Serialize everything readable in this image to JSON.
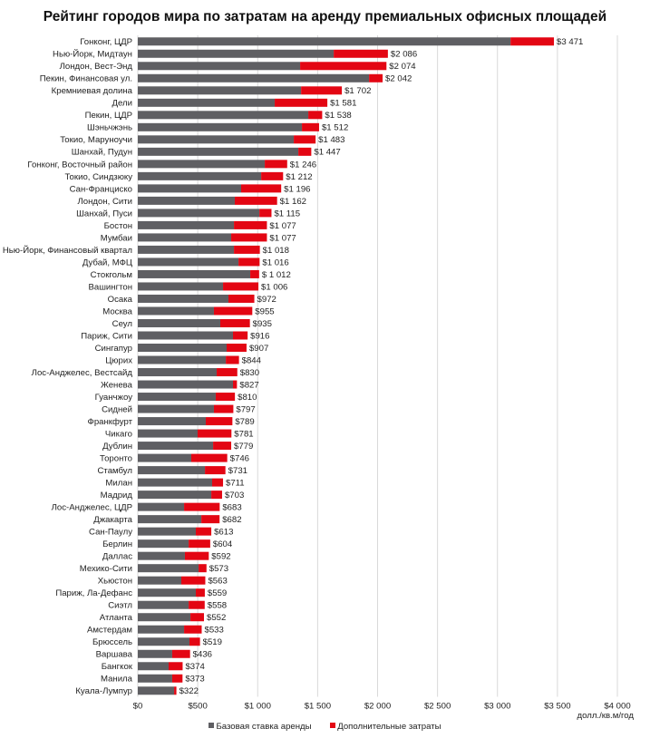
{
  "chart_data": {
    "type": "bar",
    "orientation": "horizontal",
    "stacked": true,
    "title": "Рейтинг городов мира по затратам на аренду премиальных офисных площадей",
    "xlabel": "долл./кв.м/год",
    "xlim": [
      0,
      4000
    ],
    "xticks": [
      0,
      500,
      1000,
      1500,
      2000,
      2500,
      3000,
      3500,
      4000
    ],
    "xtick_labels": [
      "$0",
      "$500",
      "$1 000",
      "$1 500",
      "$2 000",
      "$2 500",
      "$3 000",
      "$3 500",
      "$4 000"
    ],
    "grid": true,
    "legend_position": "bottom",
    "colors": {
      "base": "#5f5f63",
      "extra": "#e30613"
    },
    "categories": [
      "Гонконг, ЦДР",
      "Нью-Йорк, Мидтаун",
      "Лондон, Вест-Энд",
      "Пекин, Финансовая ул.",
      "Кремниевая долина",
      "Дели",
      "Пекин, ЦДР",
      "Шэньчжэнь",
      "Токио, Маруноучи",
      "Шанхай, Пудун",
      "Гонконг, Восточный район",
      "Токио, Синдзюку",
      "Сан-Франциско",
      "Лондон, Сити",
      "Шанхай, Пуси",
      "Бостон",
      "Мумбаи",
      "Нью-Йорк, Финансовый квартал",
      "Дубай, МФЦ",
      "Стокгольм",
      "Вашингтон",
      "Осака",
      "Москва",
      "Сеул",
      "Париж, Сити",
      "Сингапур",
      "Цюрих",
      "Лос-Анджелес, Вестсайд",
      "Женева",
      "Гуанчжоу",
      "Сидней",
      "Франкфурт",
      "Чикаго",
      "Дублин",
      "Торонто",
      "Стамбул",
      "Милан",
      "Мадрид",
      "Лос-Анджелес, ЦДР",
      "Джакарта",
      "Сан-Паулу",
      "Берлин",
      "Даллас",
      "Мехико-Сити",
      "Хьюстон",
      "Париж, Ла-Дефанс",
      "Сиэтл",
      "Атланта",
      "Амстердам",
      "Брюссель",
      "Варшава",
      "Бангкок",
      "Манила",
      "Куала-Лумпур"
    ],
    "totals": [
      3471,
      2086,
      2074,
      2042,
      1702,
      1581,
      1538,
      1512,
      1483,
      1447,
      1246,
      1212,
      1196,
      1162,
      1115,
      1077,
      1077,
      1018,
      1016,
      1012,
      1006,
      972,
      955,
      935,
      916,
      907,
      844,
      830,
      827,
      810,
      797,
      789,
      781,
      779,
      746,
      731,
      711,
      703,
      683,
      682,
      613,
      604,
      592,
      573,
      563,
      559,
      558,
      552,
      533,
      519,
      436,
      374,
      373,
      322
    ],
    "total_labels": [
      "$3 471",
      "$2 086",
      "$2 074",
      "$2 042",
      "$1 702",
      "$1 581",
      "$1 538",
      "$1 512",
      "$1 483",
      "$1 447",
      "$1 246",
      "$1 212",
      "$1 196",
      "$1 162",
      "$1 115",
      "$1 077",
      "$1 077",
      "$1 018",
      "$1 016",
      "$ 1 012",
      "$1 006",
      "$972",
      "$955",
      "$935",
      "$916",
      "$907",
      "$844",
      "$830",
      "$827",
      "$810",
      "$797",
      "$789",
      "$781",
      "$779",
      "$746",
      "$731",
      "$711",
      "$703",
      "$683",
      "$682",
      "$613",
      "$604",
      "$592",
      "$573",
      "$563",
      "$559",
      "$558",
      "$552",
      "$533",
      "$519",
      "$436",
      "$374",
      "$373",
      "$322"
    ],
    "series": [
      {
        "name": "Базовая ставка аренды",
        "values": [
          3109,
          1634,
          1354,
          1929,
          1362,
          1142,
          1422,
          1369,
          1301,
          1339,
          1059,
          1029,
          862,
          809,
          1014,
          802,
          779,
          802,
          840,
          938,
          711,
          756,
          635,
          688,
          794,
          741,
          734,
          658,
          794,
          650,
          635,
          567,
          499,
          628,
          446,
          560,
          620,
          613,
          386,
          530,
          484,
          424,
          393,
          507,
          363,
          484,
          424,
          439,
          386,
          431,
          287,
          257,
          287,
          303
        ]
      },
      {
        "name": "Дополнительные затраты",
        "values": [
          362,
          452,
          720,
          113,
          340,
          439,
          116,
          143,
          182,
          108,
          187,
          183,
          334,
          353,
          101,
          275,
          298,
          216,
          176,
          74,
          295,
          216,
          320,
          247,
          122,
          166,
          110,
          172,
          33,
          160,
          162,
          222,
          282,
          151,
          300,
          171,
          91,
          90,
          297,
          152,
          129,
          180,
          199,
          66,
          200,
          75,
          134,
          113,
          147,
          88,
          149,
          117,
          86,
          19
        ]
      }
    ]
  }
}
